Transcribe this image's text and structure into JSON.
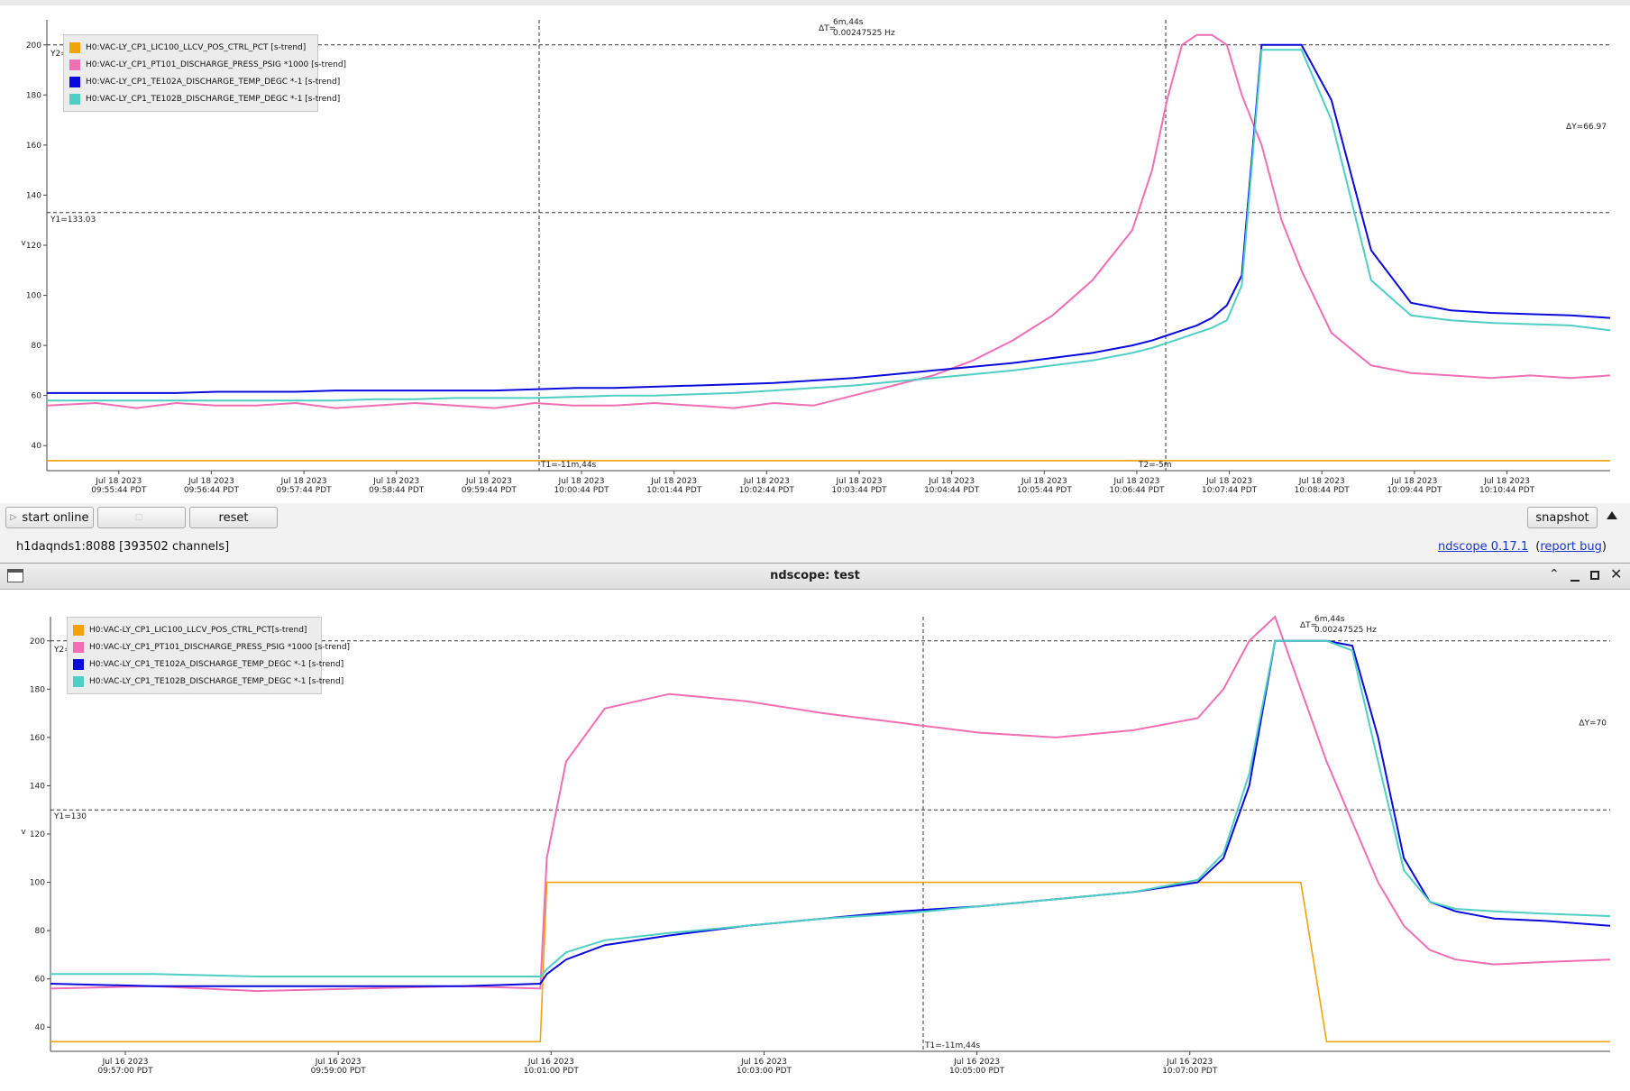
{
  "controls": {
    "start_online": "start online",
    "disabled_button": "",
    "reset": "reset",
    "snapshot": "snapshot"
  },
  "status": {
    "server": "h1daqnds1:8088  [393502 channels]",
    "version_link": "ndscope 0.17.1",
    "report_bug": "report bug",
    "paren_open": "(",
    "paren_close": ")"
  },
  "window": {
    "title": "ndscope: test"
  },
  "icons": {
    "play": "play-icon",
    "triangle_up": "triangle-up-icon",
    "window_menu": "window-menu-icon",
    "chevron_up": "chevron-up-icon",
    "minimize": "minimize-icon",
    "maximize": "maximize-icon",
    "close": "close-icon"
  },
  "colors": {
    "orange": "#f0a30a",
    "pink": "#f06fb4",
    "blue": "#0a0adc",
    "cyan": "#4fcfc4"
  },
  "chart_data": [
    {
      "type": "line",
      "ylabel": "v",
      "ylim": [
        30,
        210
      ],
      "yticks": [
        40,
        60,
        80,
        100,
        120,
        140,
        160,
        180,
        200
      ],
      "legend_placement": "top-left",
      "xticks": [
        [
          "Jul 18 2023",
          "09:55:44 PDT"
        ],
        [
          "Jul 18 2023",
          "09:56:44 PDT"
        ],
        [
          "Jul 18 2023",
          "09:57:44 PDT"
        ],
        [
          "Jul 18 2023",
          "09:58:44 PDT"
        ],
        [
          "Jul 18 2023",
          "09:59:44 PDT"
        ],
        [
          "Jul 18 2023",
          "10:00:44 PDT"
        ],
        [
          "Jul 18 2023",
          "10:01:44 PDT"
        ],
        [
          "Jul 18 2023",
          "10:02:44 PDT"
        ],
        [
          "Jul 18 2023",
          "10:03:44 PDT"
        ],
        [
          "Jul 18 2023",
          "10:04:44 PDT"
        ],
        [
          "Jul 18 2023",
          "10:05:44 PDT"
        ],
        [
          "Jul 18 2023",
          "10:06:44 PDT"
        ],
        [
          "Jul 18 2023",
          "10:07:44 PDT"
        ],
        [
          "Jul 18 2023",
          "10:08:44 PDT"
        ],
        [
          "Jul 18 2023",
          "10:09:44 PDT"
        ],
        [
          "Jul 18 2023",
          "10:10:44 PDT"
        ]
      ],
      "x": [
        0,
        0.5,
        0.9,
        1.3,
        1.7,
        2.1,
        2.5,
        2.9,
        3.3,
        3.7,
        4.1,
        4.5,
        4.9,
        5.3,
        5.7,
        6.1,
        6.5,
        6.9,
        7.3,
        7.7,
        8.1,
        8.5,
        8.9,
        9.3,
        9.7,
        10.1,
        10.5,
        10.9,
        11.1,
        11.25,
        11.4,
        11.55,
        11.7,
        11.85,
        12.0,
        12.2,
        12.4,
        12.6,
        12.9,
        13.3,
        13.7,
        14.1,
        14.5,
        14.9,
        15.3,
        15.7
      ],
      "series": [
        {
          "name": "H0:VAC-LY_CP1_LIC100_LLCV_POS_CTRL_PCT [s-trend]",
          "color": "#f0a30a",
          "values": [
            34,
            34,
            34,
            34,
            34,
            34,
            34,
            34,
            34,
            34,
            34,
            34,
            34,
            34,
            34,
            34,
            34,
            34,
            34,
            34,
            34,
            34,
            34,
            34,
            34,
            34,
            34,
            34,
            34,
            34,
            34,
            34,
            34,
            34,
            34,
            34,
            34,
            34,
            34,
            34,
            34,
            34,
            34,
            34,
            34,
            34
          ]
        },
        {
          "name": "H0:VAC-LY_CP1_PT101_DISCHARGE_PRESS_PSIG *1000 [s-trend]",
          "color": "#f06fb4",
          "values": [
            56,
            57,
            55,
            57,
            56,
            56,
            57,
            55,
            56,
            57,
            56,
            55,
            57,
            56,
            56,
            57,
            56,
            55,
            57,
            56,
            60,
            64,
            68,
            74,
            82,
            92,
            106,
            126,
            150,
            178,
            200,
            204,
            204,
            200,
            180,
            160,
            130,
            110,
            85,
            72,
            69,
            68,
            67,
            68,
            67,
            68
          ]
        },
        {
          "name": "H0:VAC-LY_CP1_TE102A_DISCHARGE_TEMP_DEGC *-1 [s-trend]",
          "color": "#0a0adc",
          "values": [
            61,
            61,
            61,
            61,
            61.5,
            61.5,
            61.5,
            62,
            62,
            62,
            62,
            62,
            62.5,
            63,
            63,
            63.5,
            64,
            64.5,
            65,
            66,
            67,
            68.5,
            70,
            71.5,
            73,
            75,
            77,
            80,
            82,
            84,
            86,
            88,
            91,
            96,
            108,
            200,
            200,
            200,
            178,
            118,
            97,
            94,
            93,
            92.5,
            92,
            91
          ]
        },
        {
          "name": "H0:VAC-LY_CP1_TE102B_DISCHARGE_TEMP_DEGC *-1 [s-trend]",
          "color": "#4fcfc4",
          "values": [
            58,
            58,
            58,
            58,
            58,
            58,
            58,
            58,
            58.5,
            58.5,
            59,
            59,
            59,
            59.5,
            60,
            60,
            60.5,
            61,
            62,
            63,
            64,
            65.5,
            67,
            68.5,
            70,
            72,
            74,
            77,
            79,
            81,
            83,
            85,
            87,
            90,
            104,
            198,
            198,
            198,
            170,
            106,
            92,
            90,
            89,
            88.5,
            88,
            86
          ]
        }
      ],
      "cursors": {
        "T1": "T1=-11m,44s",
        "T2": "T2=-5m",
        "Y1": "Y1=133.03",
        "Y2": "Y2=200",
        "dT": "ΔT=",
        "dT_val": "6m,44s",
        "dT_hz": "0.00247525 Hz",
        "dY": "ΔY=66.97"
      }
    },
    {
      "type": "line",
      "ylabel": "v",
      "ylim": [
        30,
        210
      ],
      "yticks": [
        40,
        60,
        80,
        100,
        120,
        140,
        160,
        180,
        200
      ],
      "legend_placement": "top-left",
      "xticks": [
        [
          "Jul 16 2023",
          "09:57:00 PDT"
        ],
        [
          "Jul 16 2023",
          "09:59:00 PDT"
        ],
        [
          "Jul 16 2023",
          "10:01:00 PDT"
        ],
        [
          "Jul 16 2023",
          "10:03:00 PDT"
        ],
        [
          "Jul 16 2023",
          "10:05:00 PDT"
        ],
        [
          "Jul 16 2023",
          "10:07:00 PDT"
        ]
      ],
      "x": [
        0,
        0.8,
        1.6,
        2.4,
        3.2,
        3.8,
        3.85,
        4.0,
        4.3,
        4.8,
        5.4,
        6.0,
        6.6,
        7.2,
        7.8,
        8.4,
        8.9,
        9.1,
        9.3,
        9.5,
        9.7,
        9.9,
        10.1,
        10.3,
        10.5,
        10.7,
        10.9,
        11.2,
        11.6,
        12.1
      ],
      "series": [
        {
          "name": "H0:VAC-LY_CP1_LIC100_LLCV_POS_CTRL_PCT[s-trend]",
          "color": "#f0a30a",
          "values": [
            34,
            34,
            34,
            34,
            34,
            34,
            100,
            100,
            100,
            100,
            100,
            100,
            100,
            100,
            100,
            100,
            100,
            100,
            100,
            100,
            100,
            34,
            34,
            34,
            34,
            34,
            34,
            34,
            34,
            34
          ]
        },
        {
          "name": "H0:VAC-LY_CP1_PT101_DISCHARGE_PRESS_PSIG *1000 [s-trend]",
          "color": "#f06fb4",
          "values": [
            56,
            57,
            55,
            56,
            57,
            56,
            110,
            150,
            172,
            178,
            175,
            170,
            166,
            162,
            160,
            163,
            168,
            180,
            200,
            210,
            180,
            150,
            125,
            100,
            82,
            72,
            68,
            66,
            67,
            68
          ]
        },
        {
          "name": "H0:VAC-LY_CP1_TE102A_DISCHARGE_TEMP_DEGC *-1 [s-trend]",
          "color": "#0a0adc",
          "values": [
            58,
            57,
            57,
            57,
            57,
            58,
            62,
            68,
            74,
            78,
            82,
            85,
            88,
            90,
            93,
            96,
            100,
            110,
            140,
            200,
            200,
            200,
            198,
            160,
            110,
            92,
            88,
            85,
            84,
            82
          ]
        },
        {
          "name": "H0:VAC-LY_CP1_TE102B_DISCHARGE_TEMP_DEGC *-1 [s-trend]",
          "color": "#4fcfc4",
          "values": [
            62,
            62,
            61,
            61,
            61,
            61,
            64,
            71,
            76,
            79,
            82,
            85,
            87,
            90,
            93,
            96,
            101,
            112,
            145,
            200,
            200,
            200,
            196,
            150,
            105,
            92,
            89,
            88,
            87,
            86
          ]
        }
      ],
      "cursors": {
        "T1": "T1=-11m,44s",
        "Y1": "Y1=130",
        "Y2": "Y2=200",
        "dT": "ΔT=",
        "dT_val": "6m,44s",
        "dT_hz": "0.00247525 Hz",
        "dY": "ΔY=70"
      }
    }
  ]
}
